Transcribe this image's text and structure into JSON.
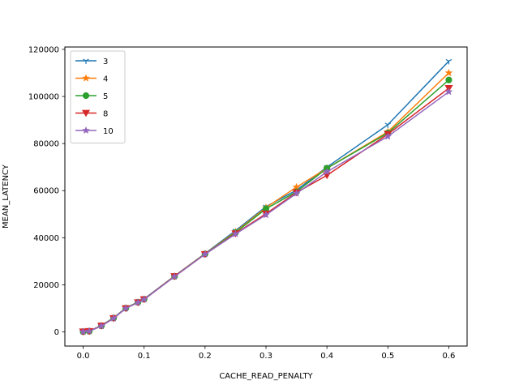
{
  "chart_data": {
    "type": "line",
    "title": "",
    "xlabel": "CACHE_READ_PENALTY",
    "ylabel": "MEAN_LATENCY",
    "xlim": [
      -0.03,
      0.63
    ],
    "ylim": [
      -6000,
      121000
    ],
    "xticks": [
      0.0,
      0.1,
      0.2,
      0.3,
      0.4,
      0.5,
      0.6
    ],
    "xtick_labels": [
      "0.0",
      "0.1",
      "0.2",
      "0.3",
      "0.4",
      "0.5",
      "0.6"
    ],
    "yticks": [
      0,
      20000,
      40000,
      60000,
      80000,
      100000,
      120000
    ],
    "ytick_labels": [
      "0",
      "20000",
      "40000",
      "60000",
      "80000",
      "100000",
      "120000"
    ],
    "grid": false,
    "legend_position": "upper-left",
    "x": [
      0.0,
      0.01,
      0.03,
      0.05,
      0.07,
      0.09,
      0.1,
      0.15,
      0.2,
      0.25,
      0.3,
      0.35,
      0.4,
      0.5,
      0.6
    ],
    "series": [
      {
        "name": "3",
        "color": "#1f77b4",
        "marker": "tri_down",
        "values": [
          100,
          300,
          2800,
          6000,
          10200,
          12700,
          14000,
          23800,
          33300,
          43000,
          53200,
          60200,
          70000,
          88000,
          115000
        ]
      },
      {
        "name": "4",
        "color": "#ff7f0e",
        "marker": "star",
        "values": [
          100,
          300,
          2700,
          5900,
          10100,
          12600,
          13900,
          23700,
          33200,
          42500,
          52800,
          61500,
          69500,
          85000,
          110000
        ]
      },
      {
        "name": "5",
        "color": "#2ca02c",
        "marker": "circle",
        "values": [
          100,
          300,
          2600,
          5900,
          10100,
          12600,
          13900,
          23600,
          33100,
          42200,
          52300,
          59500,
          69500,
          84500,
          107000
        ]
      },
      {
        "name": "8",
        "color": "#d62728",
        "marker": "triangle_down",
        "values": [
          100,
          300,
          2600,
          5800,
          10000,
          12500,
          13800,
          23600,
          33000,
          41800,
          50200,
          59200,
          66500,
          84000,
          103500
        ]
      },
      {
        "name": "10",
        "color": "#9467bd",
        "marker": "star",
        "values": [
          100,
          300,
          2500,
          5800,
          10000,
          12500,
          13800,
          23500,
          33000,
          41600,
          49700,
          58800,
          68000,
          83000,
          102000
        ]
      }
    ]
  }
}
